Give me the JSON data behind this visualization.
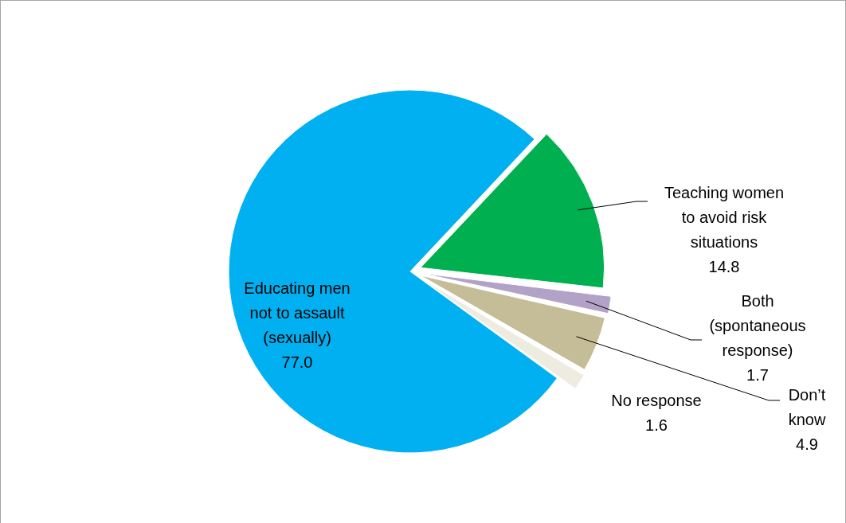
{
  "chart_data": {
    "type": "pie",
    "categories": [
      "Educating men not to assault (sexually)",
      "Teaching women to avoid risk situations",
      "Both (spontaneous response)",
      "Don’t know",
      "No response"
    ],
    "values": [
      77.0,
      14.8,
      1.7,
      4.9,
      1.6
    ],
    "value_labels": [
      "77.0",
      "14.8",
      "1.7",
      "4.9",
      "1.6"
    ],
    "colors": [
      "#00b0f0",
      "#00b050",
      "#b3a2c7",
      "#c4bd97",
      "#eeece1"
    ],
    "legend": false
  }
}
